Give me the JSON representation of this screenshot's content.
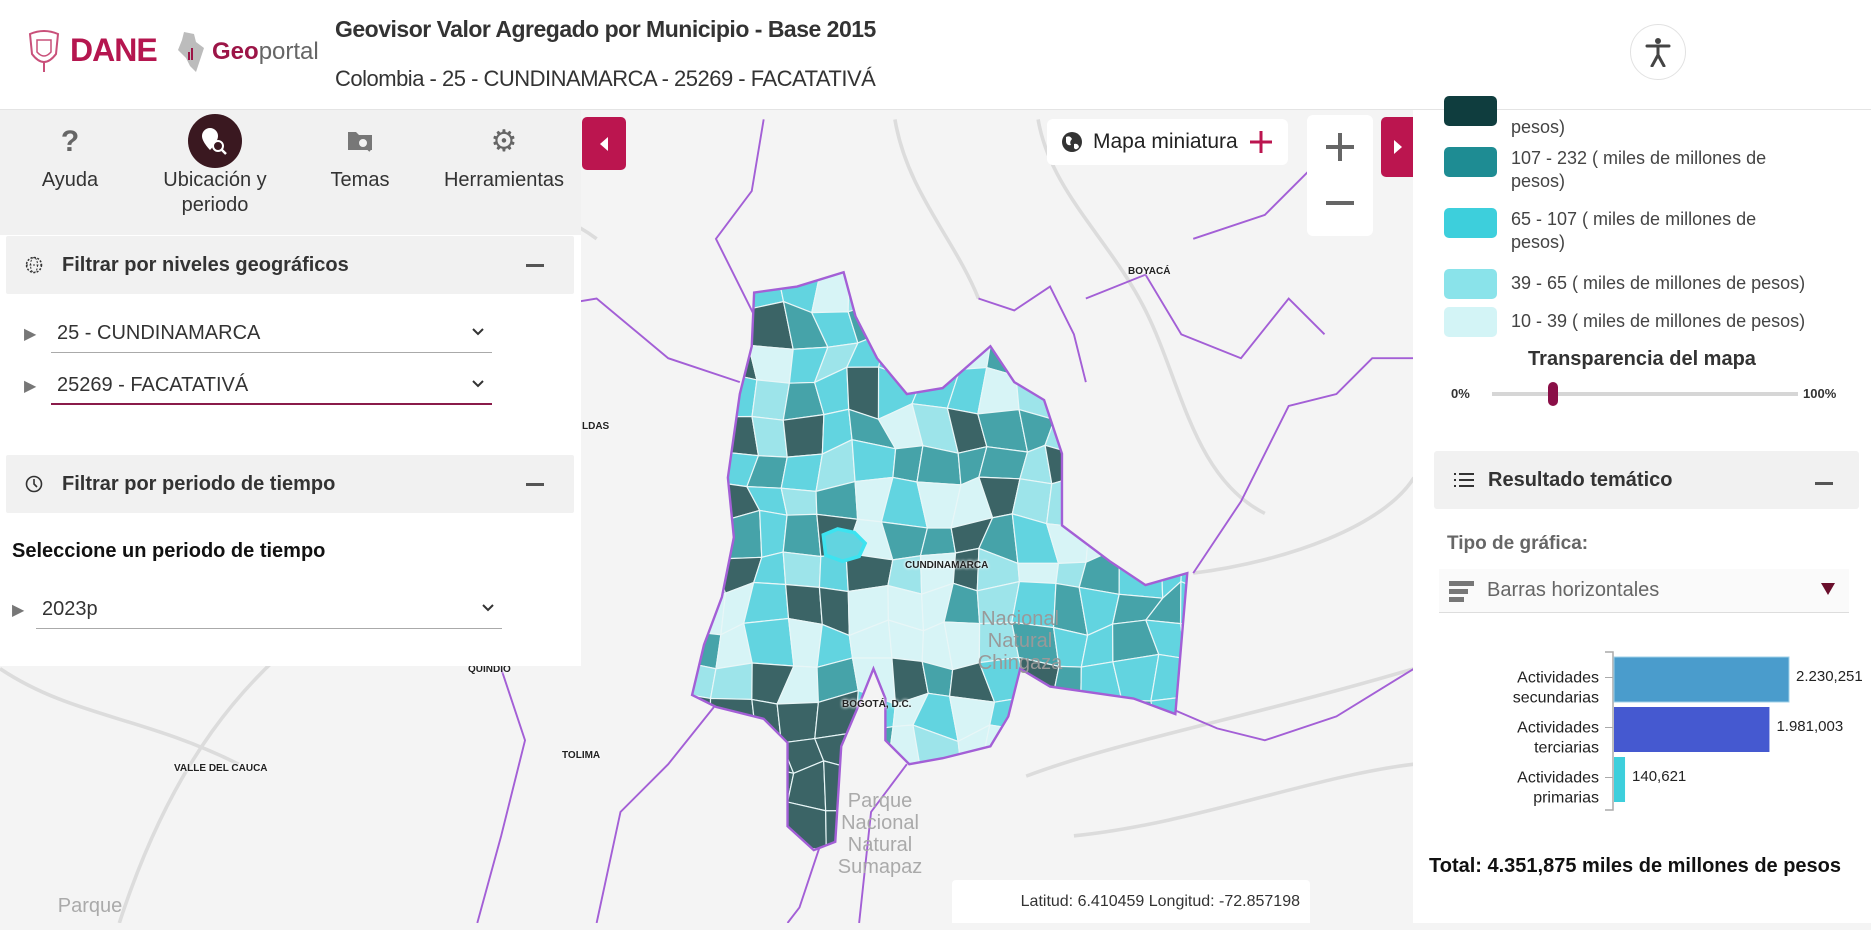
{
  "header": {
    "dane_logo": "DANE",
    "geoportal_logo_bold": "Geo",
    "geoportal_logo_rest": "portal",
    "title": "Geovisor Valor Agregado por Municipio - Base 2015",
    "subtitle": "Colombia - 25 - CUNDINAMARCA - 25269 - FACATATIVÁ",
    "accessibility_icon": "accessibility-icon"
  },
  "toolbar": {
    "items": [
      {
        "label": "Ayuda",
        "icon": "question-icon",
        "active": false
      },
      {
        "label": "Ubicación y periodo",
        "icon": "location-search-icon",
        "active": true
      },
      {
        "label": "Temas",
        "icon": "folder-search-icon",
        "active": false
      },
      {
        "label": "Herramientas",
        "icon": "gear-icon",
        "active": false
      }
    ]
  },
  "geo_filter": {
    "title": "Filtrar por niveles geográficos",
    "department": "25 - CUNDINAMARCA",
    "municipality": "25269 - FACATATIVÁ"
  },
  "time_filter": {
    "title": "Filtrar por periodo de tiempo",
    "prompt": "Seleccione un periodo de tiempo",
    "period": "2023p"
  },
  "map": {
    "mini_map_label": "Mapa miniatura",
    "labels": {
      "boyaca": "BOYACÁ",
      "caldas": "LDAS",
      "cundinamarca": "CUNDINAMARCA",
      "quindio": "QUINDIO",
      "valle": "VALLE DEL CAUCA",
      "tolima": "TOLIMA",
      "bogota": "BOGOTÁ, D.C."
    },
    "parks": {
      "sumapaz": "Parque Nacional Natural Sumapaz",
      "chingaza": "Nacional Natural Chingaza",
      "bottom_left": "Parque"
    },
    "coordinates": "Latitud: 6.410459 Longitud: -72.857198",
    "border_color": "#a35fd6"
  },
  "legend": {
    "items": [
      {
        "label": "pesos)",
        "color": "#0f3d3e"
      },
      {
        "label": "107 - 232 ( miles de millones de pesos)",
        "color": "#1e8c93"
      },
      {
        "label": "65 - 107 ( miles de millones de pesos)",
        "color": "#3dcfdc"
      },
      {
        "label": "39 - 65 ( miles de millones de pesos)",
        "color": "#8ae3ea"
      },
      {
        "label": "10 - 39 ( miles de millones de pesos)",
        "color": "#d3f4f6"
      }
    ],
    "transparency_title": "Transparencia del mapa",
    "transparency_min": "0%",
    "transparency_max": "100%",
    "transparency_value": 0.2
  },
  "result": {
    "title": "Resultado temático",
    "chart_type_label": "Tipo de gráfica:",
    "chart_type": "Barras horizontales",
    "total": "Total: 4.351,875 miles de millones de pesos"
  },
  "chart_data": {
    "type": "bar",
    "orientation": "horizontal",
    "categories": [
      "Actividades secundarias",
      "Actividades terciarias",
      "Actividades primarias"
    ],
    "values": [
      2230.251,
      1981.003,
      140.621
    ],
    "value_labels": [
      "2.230,251",
      "1.981,003",
      "140,621"
    ],
    "colors": [
      "#4a9ccc",
      "#4559d0",
      "#3dcfdc"
    ],
    "title": "",
    "xlabel": "",
    "ylabel": ""
  }
}
